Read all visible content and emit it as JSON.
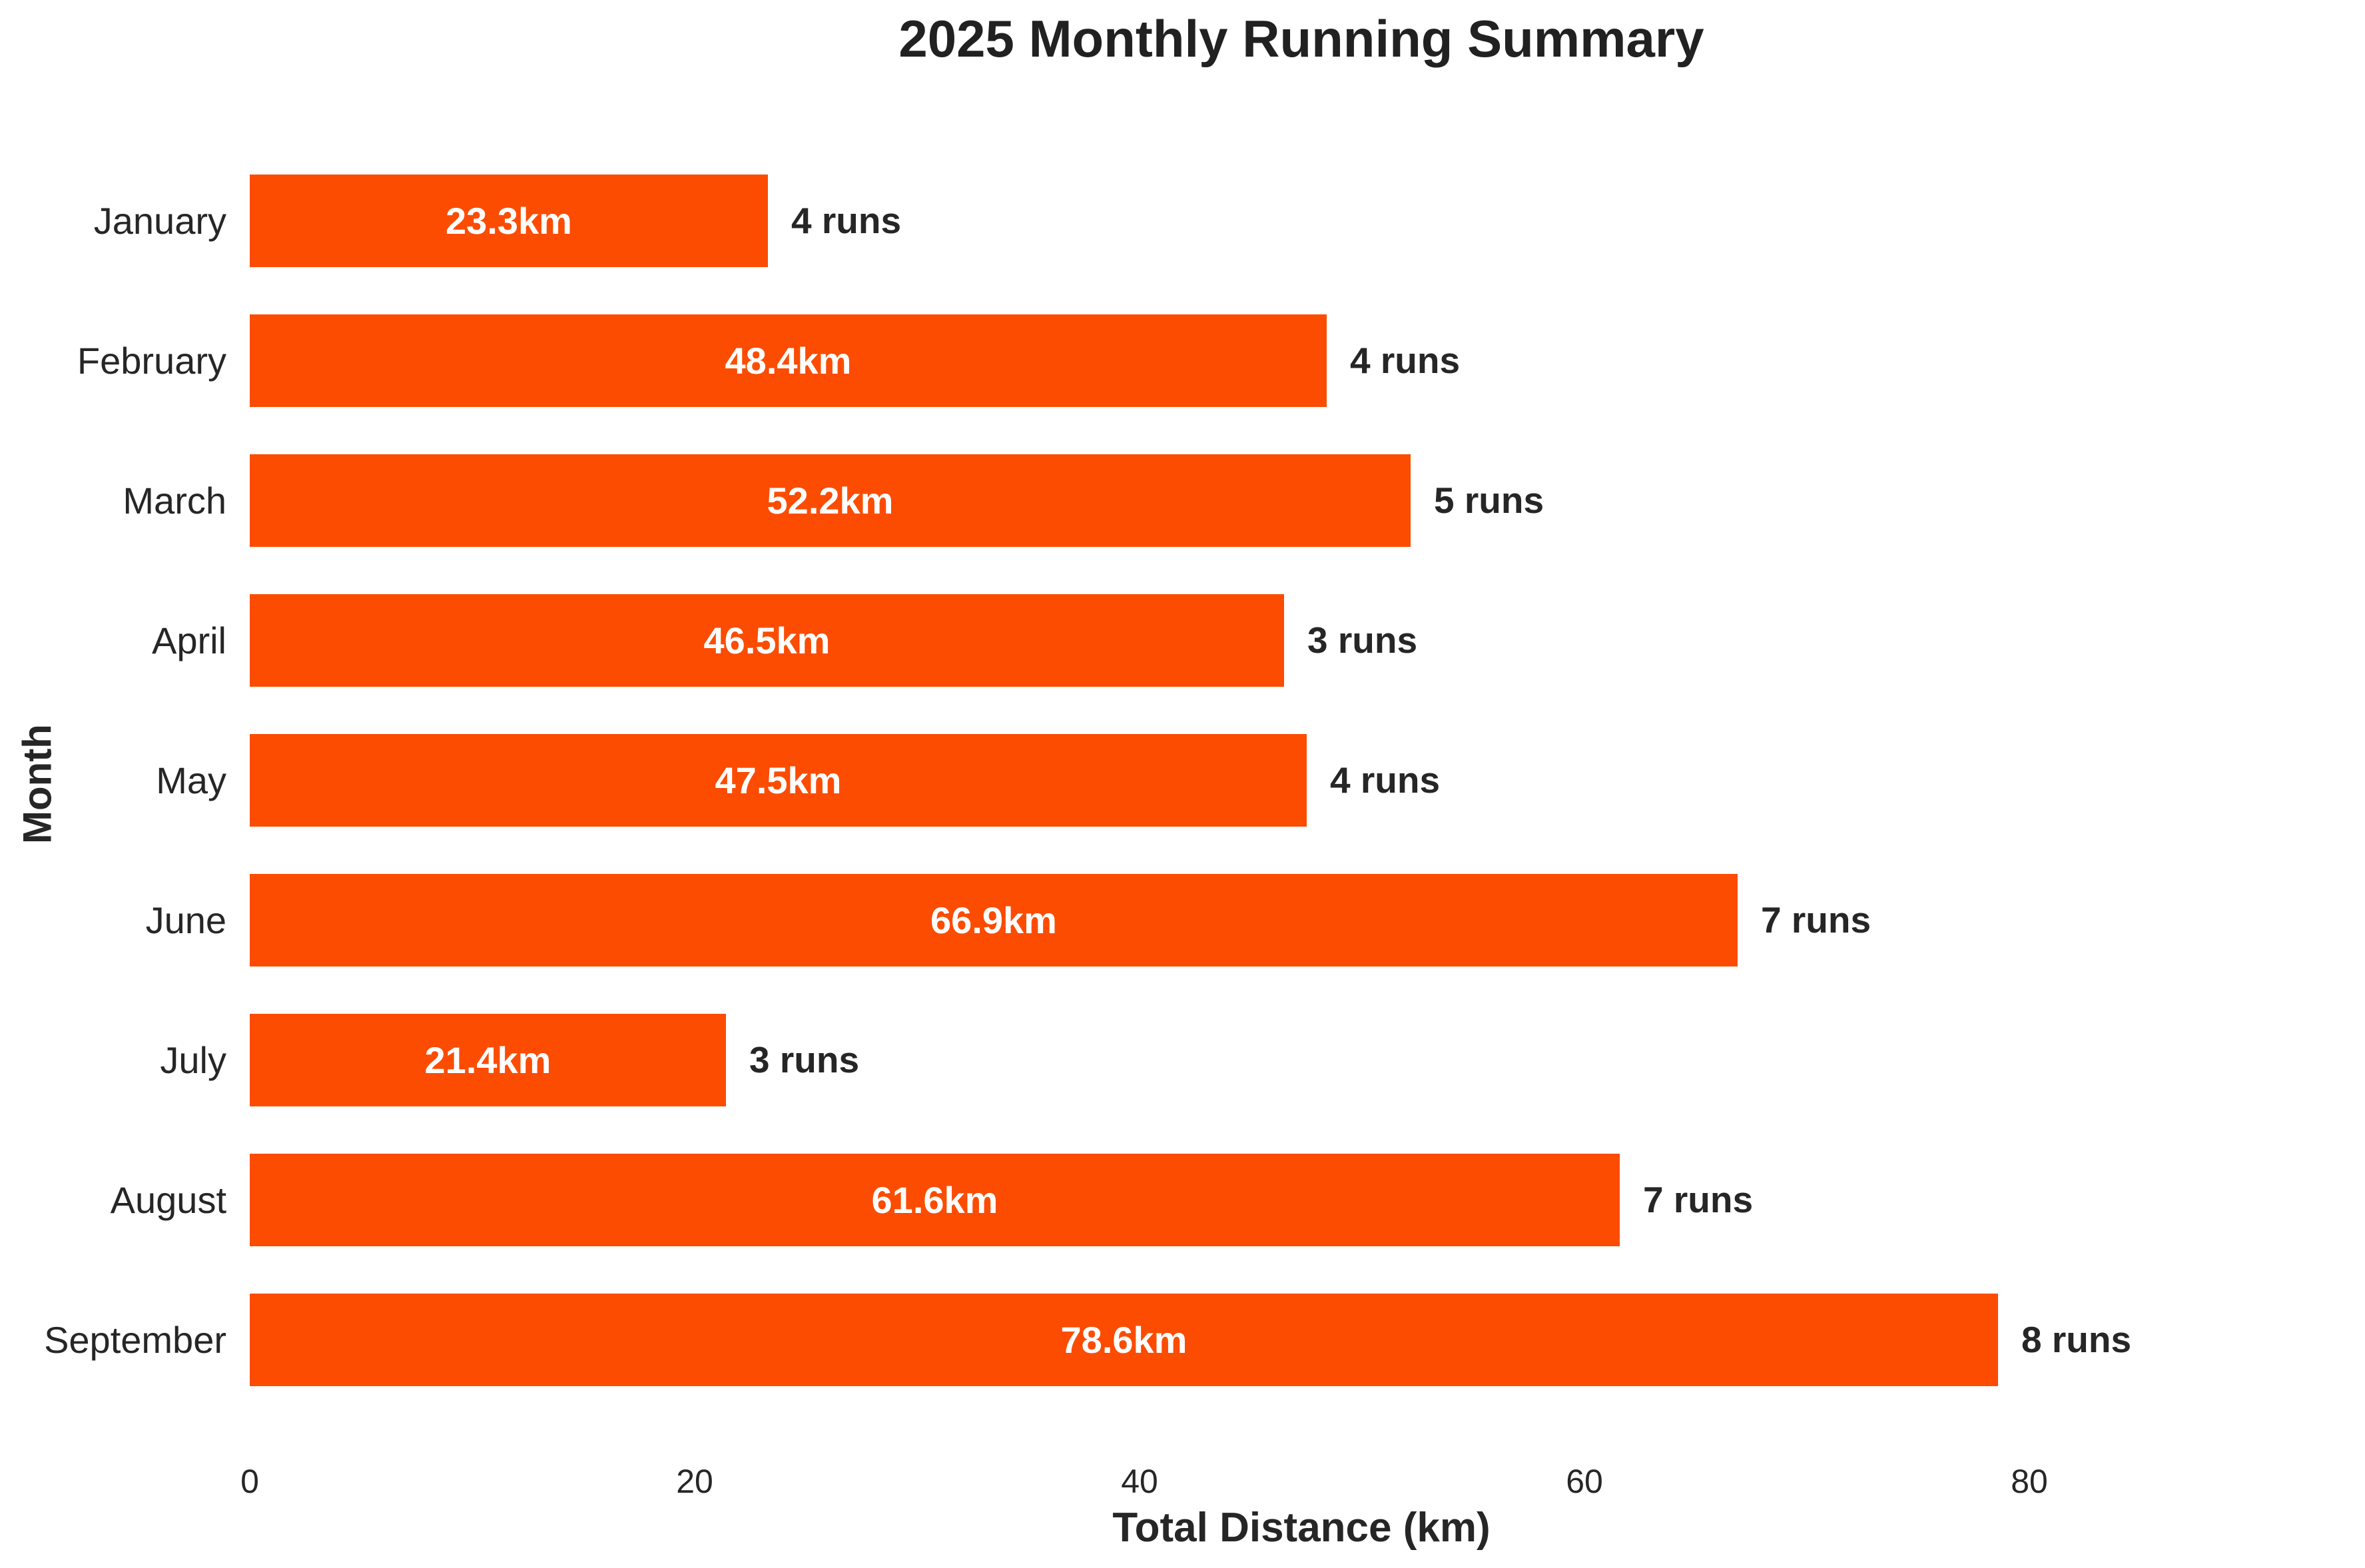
{
  "colors": {
    "background": "#FFFFFF",
    "bar": "#FC4C02",
    "bar_label": "#FFFFFF",
    "text": "#262626",
    "title": "#212121"
  },
  "chart_data": {
    "type": "bar",
    "orientation": "horizontal",
    "title": "2025 Monthly Running Summary",
    "xlabel": "Total Distance (km)",
    "ylabel": "Month",
    "categories": [
      "January",
      "February",
      "March",
      "April",
      "May",
      "June",
      "July",
      "August",
      "September"
    ],
    "series": [
      {
        "name": "Total Distance (km)",
        "values": [
          23.3,
          48.4,
          52.2,
          46.5,
          47.5,
          66.9,
          21.4,
          61.6,
          78.6
        ]
      },
      {
        "name": "Runs",
        "values": [
          4,
          4,
          5,
          3,
          4,
          7,
          3,
          7,
          8
        ]
      }
    ],
    "bar_value_labels": [
      "23.3km",
      "48.4km",
      "52.2km",
      "46.5km",
      "47.5km",
      "66.9km",
      "21.4km",
      "61.6km",
      "78.6km"
    ],
    "runs_labels": [
      "4 runs",
      "4 runs",
      "5 runs",
      "3 runs",
      "4 runs",
      "7 runs",
      "3 runs",
      "7 runs",
      "8 runs"
    ],
    "xticks": [
      0,
      20,
      40,
      60,
      80
    ],
    "xlim": [
      0,
      94
    ],
    "grid": false,
    "legend": null
  }
}
